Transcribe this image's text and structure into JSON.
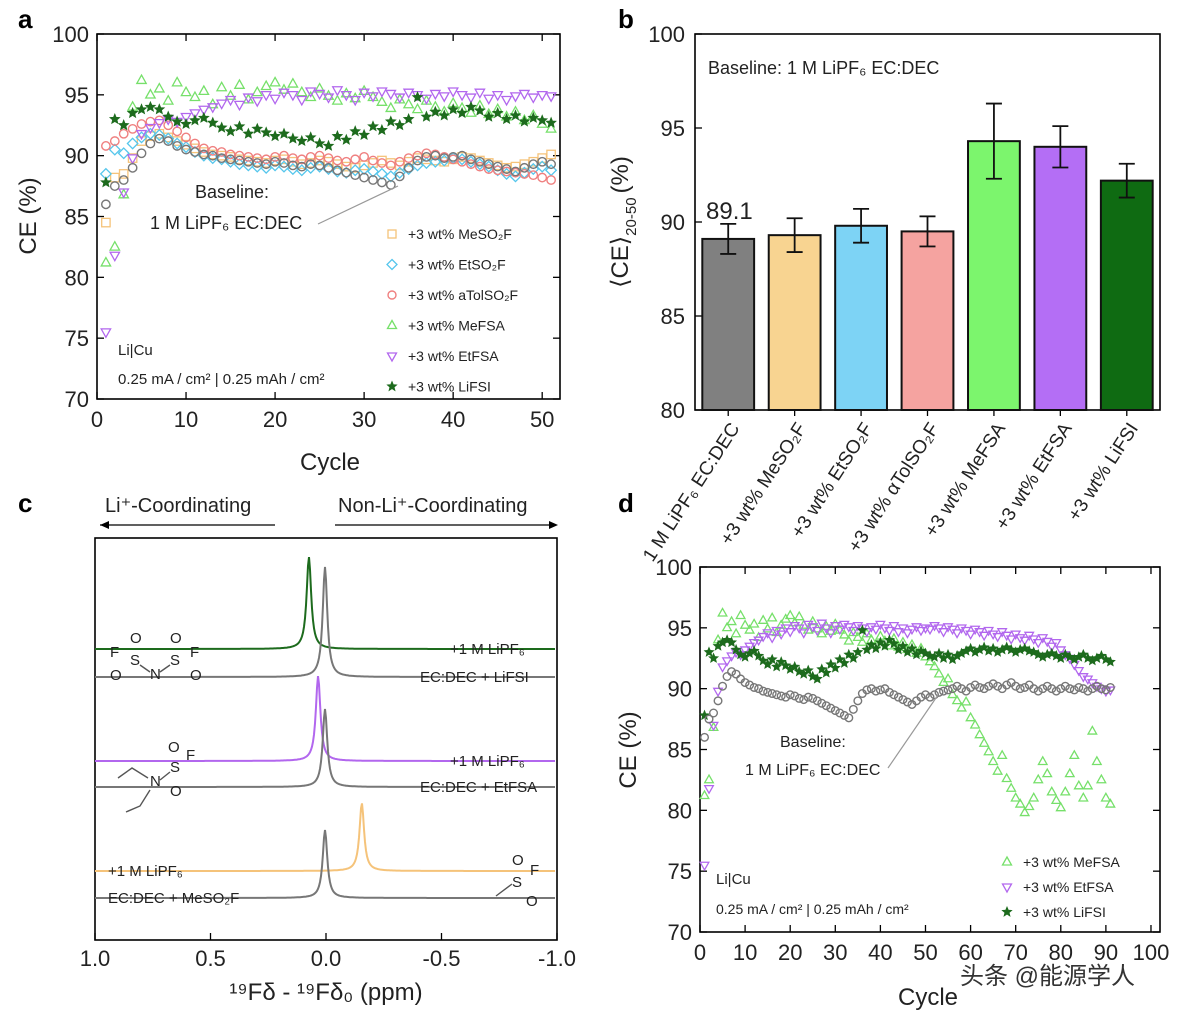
{
  "colors": {
    "MeSO2F": "#f5c37a",
    "EtSO2F": "#55c6ec",
    "aTolSO2F": "#ef7f7f",
    "MeFSA": "#76e06a",
    "EtFSA": "#b267ee",
    "LiFSI": "#1d6b1d",
    "baseline": "#777777"
  },
  "chart_data": [
    {
      "panel": "a",
      "type": "scatter",
      "xlabel": "Cycle",
      "ylabel": "CE (%)",
      "xlim": [
        0,
        52
      ],
      "ylim": [
        70,
        100
      ],
      "xticks": [
        "0",
        "10",
        "20",
        "30",
        "40",
        "50"
      ],
      "yticks": [
        "70",
        "75",
        "80",
        "85",
        "90",
        "95",
        "100"
      ],
      "annotation": {
        "line1": "Baseline:",
        "line2": "1 M LiPF₆ EC:DEC"
      },
      "cell_label": "Li|Cu",
      "condition_label": "0.25 mA / cm² | 0.25 mAh / cm²",
      "series": [
        {
          "name": "+3 wt% MeSO₂F",
          "key": "MeSO2F",
          "marker": "square",
          "values": [
            84.5,
            88.2,
            88.5,
            89.8,
            91.2,
            91.6,
            91.8,
            91.5,
            91.2,
            90.9,
            90.6,
            90.3,
            90.1,
            90.0,
            89.9,
            89.7,
            89.6,
            89.5,
            89.4,
            89.6,
            89.7,
            89.5,
            89.3,
            89.4,
            89.6,
            89.5,
            89.3,
            89.1,
            89.0,
            89.2,
            89.4,
            89.6,
            89.4,
            89.2,
            89.5,
            89.8,
            89.7,
            89.6,
            89.5,
            89.7,
            89.9,
            89.8,
            89.6,
            89.4,
            89.2,
            89.0,
            89.1,
            89.3,
            89.5,
            89.8,
            90.1
          ]
        },
        {
          "name": "+3 wt% EtSO₂F",
          "key": "EtSO2F",
          "marker": "diamond",
          "values": [
            88.5,
            90.5,
            90.2,
            91.0,
            91.5,
            91.8,
            91.7,
            91.4,
            91.0,
            90.7,
            90.3,
            90.0,
            89.8,
            89.7,
            89.5,
            89.3,
            89.2,
            89.1,
            89.0,
            89.2,
            89.1,
            88.9,
            88.8,
            89.0,
            89.1,
            88.9,
            88.7,
            88.6,
            88.8,
            88.9,
            88.7,
            88.5,
            88.3,
            88.6,
            88.9,
            89.2,
            89.4,
            89.5,
            89.6,
            89.8,
            89.7,
            89.5,
            89.3,
            89.1,
            88.8,
            88.5,
            88.3,
            88.6,
            88.9,
            89.1,
            88.8
          ]
        },
        {
          "name": "+3 wt% aTolSO₂F",
          "key": "aTolSO2F",
          "marker": "circle",
          "values": [
            90.8,
            91.2,
            91.8,
            92.2,
            92.6,
            92.8,
            92.9,
            92.5,
            92.0,
            91.5,
            91.0,
            90.6,
            90.4,
            90.3,
            90.1,
            90.0,
            89.9,
            89.8,
            89.7,
            89.9,
            90.0,
            89.8,
            89.7,
            89.9,
            90.0,
            89.8,
            89.6,
            89.5,
            89.7,
            89.9,
            89.6,
            89.4,
            89.2,
            89.5,
            89.8,
            90.0,
            90.2,
            90.1,
            89.9,
            89.7,
            89.5,
            89.3,
            89.1,
            88.9,
            88.8,
            88.7,
            88.6,
            88.5,
            88.4,
            88.2,
            88.0
          ]
        },
        {
          "name": "+3 wt% MeFSA",
          "key": "MeFSA",
          "marker": "triangle-up",
          "values": [
            81.2,
            82.5,
            86.8,
            94.0,
            96.2,
            95.0,
            95.5,
            94.5,
            96.0,
            95.2,
            94.8,
            95.3,
            94.2,
            95.6,
            94.9,
            95.8,
            94.6,
            95.2,
            95.7,
            96.0,
            95.4,
            95.9,
            95.2,
            94.8,
            95.5,
            94.9,
            94.5,
            95.1,
            94.7,
            95.3,
            94.8,
            94.4,
            93.9,
            94.6,
            94.2,
            93.8,
            94.5,
            94.0,
            93.6,
            94.3,
            93.9,
            93.5,
            94.1,
            93.4,
            93.8,
            93.2,
            93.6,
            92.9,
            93.3,
            92.6,
            92.2
          ]
        },
        {
          "name": "+3 wt% EtFSA",
          "key": "EtFSA",
          "marker": "triangle-down",
          "values": [
            75.5,
            81.8,
            87.0,
            89.8,
            91.8,
            92.3,
            92.7,
            93.0,
            92.8,
            93.2,
            93.5,
            93.8,
            94.0,
            94.3,
            94.6,
            94.2,
            94.8,
            94.5,
            95.0,
            94.7,
            95.2,
            95.0,
            94.6,
            95.3,
            95.1,
            94.8,
            95.4,
            95.0,
            94.6,
            95.2,
            94.9,
            95.3,
            95.1,
            94.8,
            95.2,
            95.0,
            94.7,
            95.1,
            94.9,
            95.3,
            95.0,
            94.8,
            95.2,
            94.7,
            95.0,
            94.6,
            94.9,
            95.1,
            94.8,
            95.0,
            94.9
          ]
        },
        {
          "name": "+3 wt% LiFSI",
          "key": "LiFSI",
          "marker": "star",
          "values": [
            87.8,
            93.0,
            92.5,
            93.5,
            93.8,
            94.0,
            93.8,
            93.2,
            92.8,
            92.6,
            92.9,
            93.1,
            92.7,
            92.3,
            92.0,
            92.4,
            91.8,
            92.2,
            91.9,
            91.6,
            91.8,
            91.4,
            91.2,
            91.5,
            91.0,
            90.8,
            91.6,
            91.3,
            92.0,
            91.7,
            92.4,
            92.1,
            92.8,
            92.5,
            93.0,
            94.8,
            93.2,
            93.6,
            93.3,
            93.8,
            93.5,
            94.0,
            93.7,
            93.2,
            93.5,
            93.0,
            93.3,
            92.8,
            93.1,
            92.9,
            92.7
          ]
        },
        {
          "name": "Baseline",
          "key": "baseline",
          "marker": "circle",
          "values": [
            86.0,
            87.5,
            88.0,
            89.0,
            90.2,
            91.0,
            91.4,
            91.2,
            90.8,
            90.5,
            90.3,
            90.1,
            90.0,
            89.8,
            89.7,
            89.6,
            89.5,
            89.4,
            89.3,
            89.5,
            89.4,
            89.2,
            89.1,
            89.3,
            89.2,
            89.0,
            88.8,
            88.6,
            88.4,
            88.2,
            88.0,
            87.8,
            87.6,
            88.3,
            89.0,
            89.6,
            89.9,
            90.0,
            89.8,
            89.9,
            90.0,
            89.7,
            89.5,
            89.3,
            89.1,
            88.9,
            88.7,
            89.0,
            89.3,
            89.5,
            89.3
          ]
        }
      ]
    },
    {
      "panel": "b",
      "type": "bar",
      "ylabel": "⟨CE⟩",
      "ylabel_sub": "20-50",
      "ylabel_unit": "(%)",
      "ylim": [
        80,
        100
      ],
      "yticks": [
        "80",
        "85",
        "90",
        "95",
        "100"
      ],
      "title": "Baseline: 1 M LiPF₆ EC:DEC",
      "value_label": "89.1",
      "categories": [
        "1 M LiPF₆ EC:DEC",
        "+3 wt% MeSO₂F",
        "+3 wt% EtSO₂F",
        "+3 wt% αTolSO₂F",
        "+3 wt% MeFSA",
        "+3 wt% EtFSA",
        "+3 wt% LiFSI"
      ],
      "values": [
        89.1,
        89.3,
        89.8,
        89.5,
        94.3,
        94.0,
        92.2
      ],
      "errors": [
        0.8,
        0.9,
        0.9,
        0.8,
        2.0,
        1.1,
        0.9
      ],
      "bar_colors": [
        "#808080",
        "#f8d491",
        "#7dd3f5",
        "#f5a3a0",
        "#7cf56d",
        "#b46ef5",
        "#0f6b12"
      ]
    },
    {
      "panel": "c",
      "type": "line",
      "xlabel": "¹⁹Fδ - ¹⁹Fδ₀ (ppm)",
      "xlim": [
        1.0,
        -1.0
      ],
      "xticks": [
        "1.0",
        "0.5",
        "0.0",
        "-0.5",
        "-1.0"
      ],
      "header_left": "Li⁺-Coordinating",
      "header_right": "Non-Li⁺-Coordinating",
      "traces": [
        {
          "label": "+1 M LiPF₆",
          "key": "LiFSI",
          "peak_ppm": 0.07,
          "height": 92
        },
        {
          "label": "EC:DEC + LiFSI",
          "key": "baseline",
          "peak_ppm": 0.0,
          "height": 110
        },
        {
          "label": "+1 M LiPF₆",
          "key": "EtFSA",
          "peak_ppm": 0.03,
          "height": 85
        },
        {
          "label": "EC:DEC + EtFSA",
          "key": "baseline",
          "peak_ppm": 0.0,
          "height": 78
        },
        {
          "label": "+1 M LiPF₆",
          "key": "MeSO2F",
          "peak_ppm": -0.16,
          "height": 68
        },
        {
          "label": "EC:DEC + MeSO₂F",
          "key": "baseline",
          "peak_ppm": 0.0,
          "height": 68
        }
      ]
    },
    {
      "panel": "d",
      "type": "scatter",
      "xlabel": "Cycle",
      "ylabel": "CE (%)",
      "xlim": [
        0,
        102
      ],
      "ylim": [
        70,
        100
      ],
      "xticks": [
        "0",
        "10",
        "20",
        "30",
        "40",
        "50",
        "60",
        "70",
        "80",
        "90",
        "100"
      ],
      "yticks": [
        "70",
        "75",
        "80",
        "85",
        "90",
        "95",
        "100"
      ],
      "annotation": {
        "line1": "Baseline:",
        "line2": "1 M LiPF₆ EC:DEC"
      },
      "cell_label": "Li|Cu",
      "condition_label": "0.25 mA / cm² | 0.25 mAh / cm²",
      "series": [
        {
          "name": "+3 wt% MeFSA",
          "key": "MeFSA",
          "marker": "triangle-up",
          "values": [
            81.2,
            82.5,
            86.8,
            94.0,
            96.2,
            95.0,
            95.5,
            94.5,
            96.0,
            95.2,
            94.8,
            95.3,
            94.2,
            95.6,
            94.9,
            95.8,
            94.6,
            95.2,
            95.7,
            96.0,
            95.4,
            95.9,
            95.2,
            94.8,
            95.5,
            94.9,
            94.5,
            95.1,
            94.7,
            95.3,
            94.8,
            94.4,
            93.9,
            94.6,
            94.2,
            93.8,
            94.5,
            94.0,
            93.6,
            94.3,
            93.9,
            93.5,
            94.1,
            93.4,
            93.8,
            93.2,
            93.6,
            92.9,
            93.3,
            92.6,
            92.2,
            91.8,
            91.2,
            90.5,
            90.8,
            89.5,
            89.0,
            88.4,
            88.9,
            87.6,
            87.0,
            86.2,
            85.5,
            84.8,
            84.0,
            83.2,
            84.5,
            82.6,
            81.8,
            81.0,
            80.5,
            79.8,
            80.3,
            81.0,
            82.5,
            84.0,
            83.0,
            81.5,
            80.8,
            80.2,
            81.5,
            83.0,
            84.5,
            82.0,
            81.0,
            82.0,
            86.5,
            84.0,
            82.5,
            81.0,
            80.5
          ]
        },
        {
          "name": "+3 wt% EtFSA",
          "key": "EtFSA",
          "marker": "triangle-down",
          "values": [
            75.5,
            81.8,
            87.0,
            89.8,
            91.8,
            92.3,
            92.7,
            93.0,
            92.8,
            93.2,
            93.5,
            93.8,
            94.0,
            94.3,
            94.6,
            94.2,
            94.8,
            94.5,
            95.0,
            94.7,
            95.2,
            95.0,
            94.6,
            95.3,
            95.1,
            94.8,
            95.4,
            95.0,
            94.6,
            95.2,
            94.9,
            95.3,
            95.1,
            94.8,
            95.2,
            95.0,
            94.7,
            95.1,
            94.9,
            95.3,
            95.0,
            94.8,
            95.2,
            94.7,
            95.0,
            94.6,
            94.9,
            95.1,
            94.8,
            95.0,
            94.9,
            95.2,
            95.0,
            94.7,
            95.1,
            94.9,
            94.6,
            95.0,
            94.8,
            94.5,
            94.9,
            94.7,
            94.4,
            94.8,
            94.5,
            94.3,
            94.7,
            94.4,
            94.1,
            94.5,
            94.2,
            94.0,
            94.4,
            94.1,
            93.8,
            94.2,
            93.9,
            93.5,
            93.8,
            93.2,
            92.8,
            92.5,
            92.0,
            91.5,
            91.0,
            90.8,
            90.5,
            90.2,
            90.0,
            89.8,
            89.9
          ]
        },
        {
          "name": "+3 wt% LiFSI",
          "key": "LiFSI",
          "marker": "star",
          "values": [
            87.8,
            93.0,
            92.5,
            93.5,
            93.8,
            94.0,
            93.8,
            93.2,
            92.8,
            92.6,
            92.9,
            93.1,
            92.7,
            92.3,
            92.0,
            92.4,
            91.8,
            92.2,
            91.9,
            91.6,
            91.8,
            91.4,
            91.2,
            91.5,
            91.0,
            90.8,
            91.6,
            91.3,
            92.0,
            91.7,
            92.4,
            92.1,
            92.8,
            92.5,
            93.0,
            94.8,
            93.2,
            93.6,
            93.3,
            93.8,
            93.5,
            94.0,
            93.7,
            93.2,
            93.5,
            93.0,
            93.3,
            92.8,
            93.1,
            92.9,
            92.7,
            92.6,
            92.9,
            92.5,
            92.8,
            92.4,
            92.7,
            92.9,
            93.1,
            93.3,
            93.0,
            93.2,
            93.4,
            93.1,
            93.3,
            93.0,
            93.2,
            93.4,
            93.2,
            93.0,
            93.2,
            93.3,
            93.1,
            93.0,
            92.8,
            92.6,
            92.8,
            92.9,
            92.7,
            92.5,
            92.8,
            92.6,
            92.4,
            92.6,
            92.8,
            92.5,
            92.3,
            92.5,
            92.7,
            92.4,
            92.2
          ]
        },
        {
          "name": "Baseline",
          "key": "baseline",
          "marker": "circle",
          "values": [
            86.0,
            87.5,
            88.0,
            89.0,
            90.2,
            91.0,
            91.4,
            91.2,
            90.8,
            90.5,
            90.3,
            90.1,
            90.0,
            89.8,
            89.7,
            89.6,
            89.5,
            89.4,
            89.3,
            89.5,
            89.4,
            89.2,
            89.1,
            89.3,
            89.2,
            89.0,
            88.8,
            88.6,
            88.4,
            88.2,
            88.0,
            87.8,
            87.6,
            88.3,
            89.0,
            89.6,
            89.9,
            90.0,
            89.8,
            89.9,
            90.0,
            89.7,
            89.5,
            89.3,
            89.1,
            88.9,
            88.7,
            89.0,
            89.3,
            89.5,
            89.3,
            89.5,
            89.7,
            89.8,
            89.9,
            90.0,
            90.2,
            90.0,
            89.8,
            90.1,
            90.3,
            90.1,
            90.0,
            90.2,
            90.4,
            90.2,
            90.0,
            90.3,
            90.5,
            90.2,
            90.0,
            90.1,
            90.3,
            90.0,
            89.8,
            90.0,
            90.2,
            90.0,
            89.8,
            90.0,
            90.2,
            90.0,
            89.9,
            90.1,
            90.0,
            89.8,
            90.0,
            90.2,
            90.0,
            89.9,
            90.1
          ]
        }
      ]
    }
  ],
  "watermark": "头条 @能源学人"
}
